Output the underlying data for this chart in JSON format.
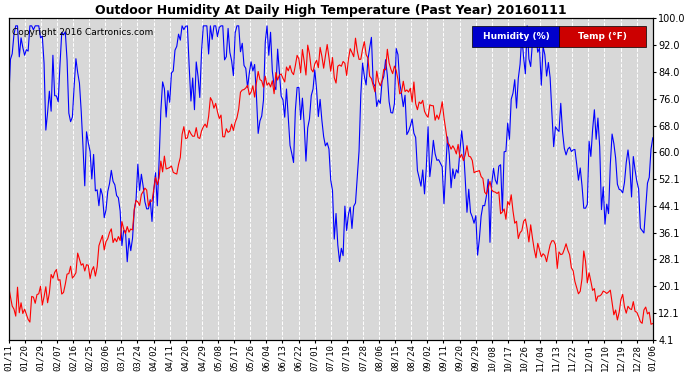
{
  "title": "Outdoor Humidity At Daily High Temperature (Past Year) 20160111",
  "copyright": "Copyright 2016 Cartronics.com",
  "legend_humidity": "Humidity (%)",
  "legend_temp": "Temp (°F)",
  "humidity_color": "#0000ff",
  "temp_color": "#ff0000",
  "humidity_legend_bg": "#0000cc",
  "temp_legend_bg": "#cc0000",
  "background_color": "#ffffff",
  "plot_bg": "#d8d8d8",
  "grid_color": "#ffffff",
  "grid_style": "--",
  "ylim": [
    4.1,
    100.0
  ],
  "ytick_vals": [
    4.1,
    12.1,
    20.1,
    28.1,
    36.1,
    44.1,
    52.1,
    60.0,
    68.0,
    76.0,
    84.0,
    92.0,
    100.0
  ],
  "ytick_labels": [
    "4.1",
    "12.1",
    "20.1",
    "28.1",
    "36.1",
    "44.1",
    "52.1",
    "60.0",
    "68.0",
    "76.0",
    "84.0",
    "92.0",
    "100.0"
  ],
  "xtick_labels": [
    "01/11",
    "01/20",
    "01/29",
    "02/07",
    "02/16",
    "02/25",
    "03/06",
    "03/15",
    "03/24",
    "04/02",
    "04/11",
    "04/20",
    "04/29",
    "05/08",
    "05/17",
    "05/26",
    "06/04",
    "06/13",
    "06/22",
    "07/01",
    "07/10",
    "07/19",
    "07/28",
    "08/06",
    "08/15",
    "08/24",
    "09/02",
    "09/11",
    "09/20",
    "09/29",
    "10/08",
    "10/17",
    "10/26",
    "11/04",
    "11/13",
    "11/22",
    "12/01",
    "12/10",
    "12/19",
    "12/28",
    "01/06"
  ],
  "figsize": [
    6.9,
    3.75
  ],
  "dpi": 100,
  "title_fontsize": 9,
  "tick_fontsize": 6.5,
  "copyright_fontsize": 6.5,
  "legend_fontsize": 6.5,
  "linewidth": 0.8
}
